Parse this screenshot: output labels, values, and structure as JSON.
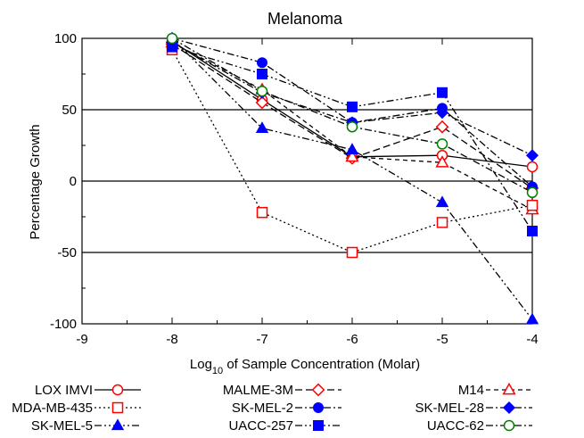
{
  "chart_data": {
    "type": "line",
    "title": "Melanoma",
    "xlabel_prefix": "Log",
    "xlabel_sub": "10",
    "xlabel_suffix": " of Sample Concentration (Molar)",
    "ylabel": "Percentage Growth",
    "xlim": [
      -9,
      -4
    ],
    "ylim": [
      -100,
      100
    ],
    "x_ticks": [
      -9,
      -8,
      -7,
      -6,
      -5,
      -4
    ],
    "x_tick_labels": [
      "-9",
      "-8",
      "-7",
      "-6",
      "-5",
      "-4"
    ],
    "y_ticks": [
      -100,
      -50,
      0,
      50,
      100
    ],
    "y_tick_labels": [
      "-100",
      "-50",
      "0",
      "50",
      "100"
    ],
    "reference_lines": [
      50,
      0,
      -50
    ],
    "legend_position": "bottom",
    "series": [
      {
        "name": "LOX IMVI",
        "color": "#ff0000",
        "marker": "circle-open",
        "dash": "solid",
        "x": [
          -8,
          -7,
          -6,
          -5,
          -4
        ],
        "y": [
          98,
          57,
          17,
          18,
          10
        ]
      },
      {
        "name": "MALME-3M",
        "color": "#ff0000",
        "marker": "diamond-open",
        "dash": "dash",
        "x": [
          -8,
          -7,
          -6,
          -5,
          -4
        ],
        "y": [
          96,
          55,
          16,
          38,
          -5
        ]
      },
      {
        "name": "M14",
        "color": "#ff0000",
        "marker": "triangle-open",
        "dash": "shortdash",
        "x": [
          -8,
          -7,
          -6,
          -5,
          -4
        ],
        "y": [
          97,
          64,
          17,
          13,
          -20
        ]
      },
      {
        "name": "MDA-MB-435",
        "color": "#ff0000",
        "marker": "square-open",
        "dash": "dot",
        "x": [
          -8,
          -7,
          -6,
          -5,
          -4
        ],
        "y": [
          92,
          -22,
          -50,
          -29,
          -17
        ]
      },
      {
        "name": "SK-MEL-2",
        "color": "#0000ff",
        "marker": "circle",
        "dash": "dashdot",
        "x": [
          -8,
          -7,
          -6,
          -5,
          -4
        ],
        "y": [
          100,
          83,
          41,
          51,
          -4
        ]
      },
      {
        "name": "SK-MEL-28",
        "color": "#0000ff",
        "marker": "diamond",
        "dash": "dashdot",
        "x": [
          -8,
          -7,
          -6,
          -5,
          -4
        ],
        "y": [
          97,
          62,
          41,
          48,
          18
        ]
      },
      {
        "name": "SK-MEL-5",
        "color": "#0000ff",
        "marker": "triangle",
        "dash": "dashdotdot",
        "x": [
          -8,
          -7,
          -6,
          -5,
          -4
        ],
        "y": [
          100,
          37,
          22,
          -15,
          -97
        ]
      },
      {
        "name": "UACC-257",
        "color": "#0000ff",
        "marker": "square",
        "dash": "dashdotdot",
        "x": [
          -8,
          -7,
          -6,
          -5,
          -4
        ],
        "y": [
          94,
          75,
          52,
          62,
          -35
        ]
      },
      {
        "name": "UACC-62",
        "color": "#008000",
        "marker": "circle-open",
        "dash": "dashdot",
        "x": [
          -8,
          -7,
          -6,
          -5,
          -4
        ],
        "y": [
          100,
          63,
          38,
          26,
          -8
        ]
      }
    ]
  }
}
